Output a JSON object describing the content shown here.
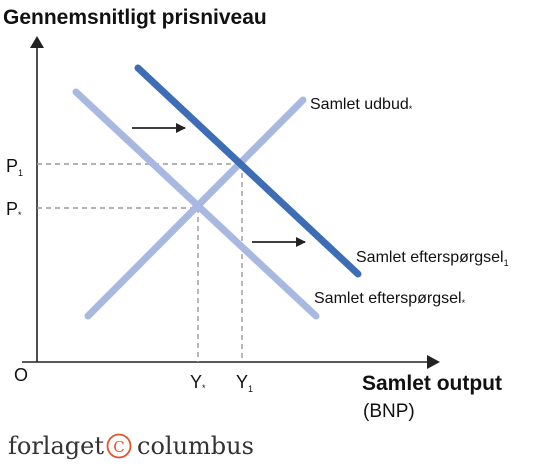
{
  "y_axis": {
    "title": "Gennemsnitligt prisniveau"
  },
  "x_axis": {
    "title": "Samlet output",
    "unit": "(BNP)"
  },
  "origin": "O",
  "price_levels": [
    {
      "base": "P",
      "sub": "1"
    },
    {
      "base": "P",
      "sub": "*"
    }
  ],
  "output_levels": [
    {
      "base": "Y",
      "sub": "*"
    },
    {
      "base": "Y",
      "sub": "1"
    }
  ],
  "curves": {
    "supply": {
      "base": "Samlet udbud",
      "sub": "*",
      "color": "#a8b8e0"
    },
    "demand_new": {
      "base": "Samlet efterspørgsel",
      "sub": "1",
      "color": "#3c6db5"
    },
    "demand_old": {
      "base": "Samlet efterspørgsel",
      "sub": "*",
      "color": "#a8b8e0"
    }
  },
  "arrows": [
    "shift-right",
    "shift-right"
  ],
  "brand": {
    "left": "forlaget",
    "right": "columbus",
    "symbol": "C"
  }
}
